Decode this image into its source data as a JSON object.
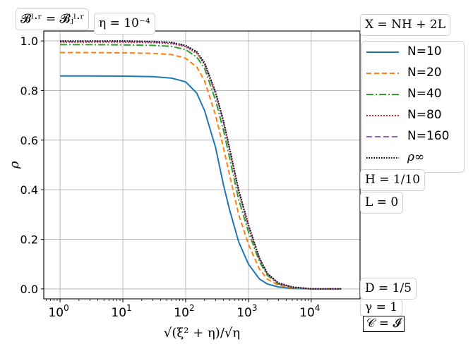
{
  "chart_data": {
    "type": "line",
    "xscale": "log",
    "xlim": [
      0.55,
      60000
    ],
    "ylim": [
      -0.04,
      1.04
    ],
    "grid": true,
    "xlabel": "√(ξ² + η)/√η",
    "ylabel": "ρ",
    "x_ticks": [
      {
        "value": 1,
        "base": "10",
        "exp": "0"
      },
      {
        "value": 10,
        "base": "10",
        "exp": "1"
      },
      {
        "value": 100,
        "base": "10",
        "exp": "2"
      },
      {
        "value": 1000,
        "base": "10",
        "exp": "3"
      },
      {
        "value": 10000,
        "base": "10",
        "exp": "4"
      }
    ],
    "y_ticks": [
      "0.0",
      "0.2",
      "0.4",
      "0.6",
      "0.8",
      "1.0"
    ],
    "x": [
      1,
      3,
      10,
      30,
      60,
      100,
      150,
      200,
      300,
      400,
      500,
      700,
      1000,
      1500,
      2000,
      3000,
      5000,
      10000,
      30000
    ],
    "series": [
      {
        "name": "N=10",
        "color": "#1f77b4",
        "dash": "",
        "values": [
          0.859,
          0.859,
          0.858,
          0.856,
          0.85,
          0.835,
          0.79,
          0.72,
          0.57,
          0.42,
          0.32,
          0.19,
          0.1,
          0.04,
          0.02,
          0.008,
          0.002,
          0.0,
          0.0
        ]
      },
      {
        "name": "N=20",
        "color": "#ff7f0e",
        "dash": "7,4",
        "values": [
          0.953,
          0.953,
          0.952,
          0.95,
          0.945,
          0.93,
          0.895,
          0.84,
          0.7,
          0.57,
          0.46,
          0.3,
          0.18,
          0.08,
          0.04,
          0.015,
          0.004,
          0.0,
          0.0
        ]
      },
      {
        "name": "N=40",
        "color": "#2ca02c",
        "dash": "10,3,2,3",
        "values": [
          0.985,
          0.985,
          0.984,
          0.982,
          0.978,
          0.965,
          0.935,
          0.89,
          0.76,
          0.64,
          0.53,
          0.36,
          0.23,
          0.11,
          0.055,
          0.02,
          0.006,
          0.0,
          0.0
        ]
      },
      {
        "name": "N=80",
        "color": "#d62728",
        "dash": "2,2",
        "values": [
          0.995,
          0.995,
          0.995,
          0.993,
          0.989,
          0.977,
          0.95,
          0.905,
          0.785,
          0.67,
          0.56,
          0.39,
          0.25,
          0.12,
          0.06,
          0.022,
          0.007,
          0.0,
          0.0
        ]
      },
      {
        "name": "N=160",
        "color": "#9467bd",
        "dash": "8,4",
        "values": [
          0.998,
          0.998,
          0.998,
          0.996,
          0.992,
          0.98,
          0.954,
          0.91,
          0.79,
          0.675,
          0.565,
          0.395,
          0.255,
          0.123,
          0.062,
          0.023,
          0.007,
          0.0,
          0.0
        ]
      },
      {
        "name": "ρ∞",
        "color": "#000000",
        "dash": "1.5,2",
        "values": [
          1.0,
          1.0,
          1.0,
          0.998,
          0.994,
          0.982,
          0.957,
          0.913,
          0.795,
          0.68,
          0.57,
          0.4,
          0.26,
          0.125,
          0.063,
          0.024,
          0.008,
          0.0,
          0.0
        ]
      }
    ]
  },
  "annotations": {
    "top_left": "𝓑ˡ·ʳ = 𝓑ⱼˡ·ʳ",
    "eta": "η = 10⁻⁴",
    "x_def": "X = NH + 2L",
    "h": "H = 1/10",
    "l": "L = 0",
    "d": "D = 1/5",
    "gamma": "γ = 1",
    "c": "𝒞 = 𝓘"
  },
  "legend": {
    "items": [
      "N=10",
      "N=20",
      "N=40",
      "N=80",
      "N=160",
      "ρ∞"
    ]
  }
}
